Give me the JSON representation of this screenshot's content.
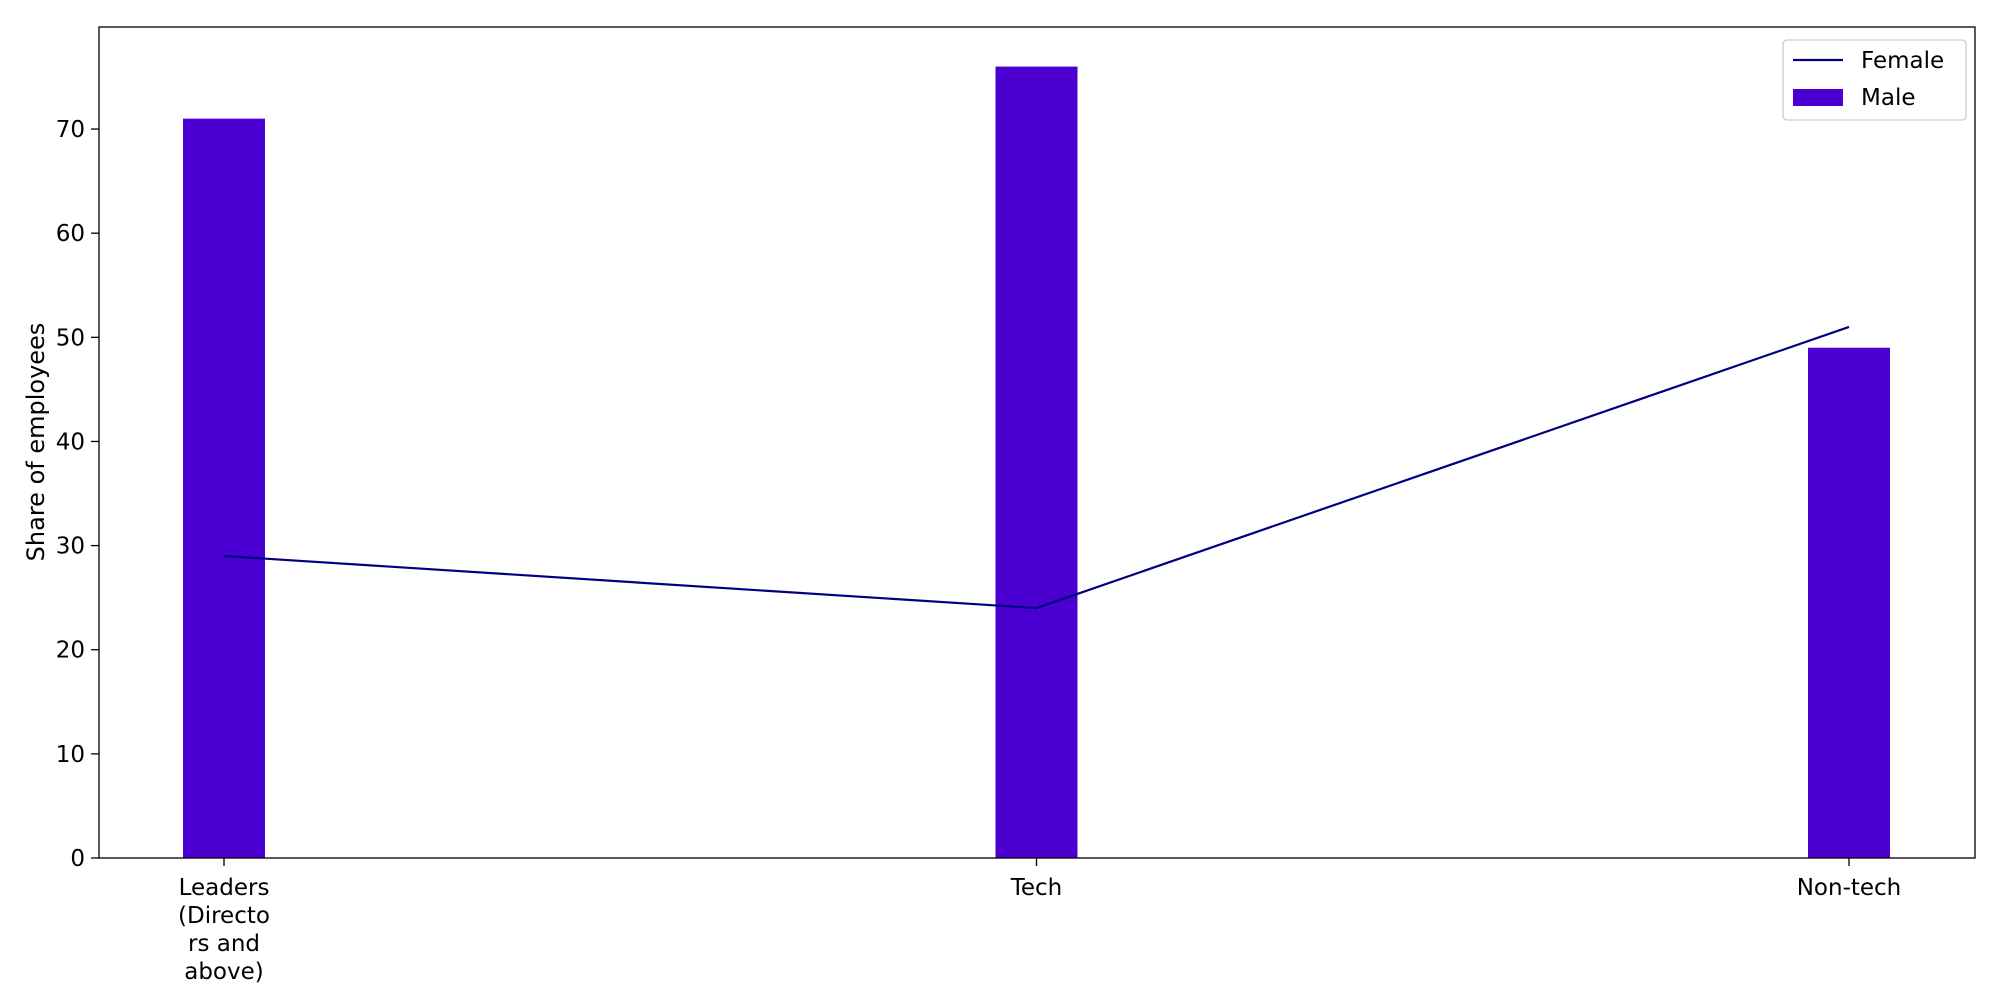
{
  "chart_data": {
    "type": "bar",
    "categories": [
      "Leaders (Directo rs and above)",
      "Tech",
      "Non-tech"
    ],
    "category_label_lines": [
      [
        "Leaders",
        "(Directo",
        "rs and",
        "above)"
      ],
      [
        "Tech"
      ],
      [
        "Non-tech"
      ]
    ],
    "series": [
      {
        "name": "Male",
        "kind": "bar",
        "values": [
          71,
          76,
          49
        ],
        "color": "#4b00d1"
      },
      {
        "name": "Female",
        "kind": "line",
        "values": [
          29,
          24,
          51
        ],
        "color": "#000080"
      }
    ],
    "title": "",
    "xlabel": "",
    "ylabel": "Share of employees",
    "ylim": [
      0,
      79.8
    ],
    "yticks": [
      0,
      10,
      20,
      30,
      40,
      50,
      60,
      70
    ],
    "grid": false,
    "legend": {
      "placement": "top-right",
      "entries": [
        "Female",
        "Male"
      ]
    }
  }
}
